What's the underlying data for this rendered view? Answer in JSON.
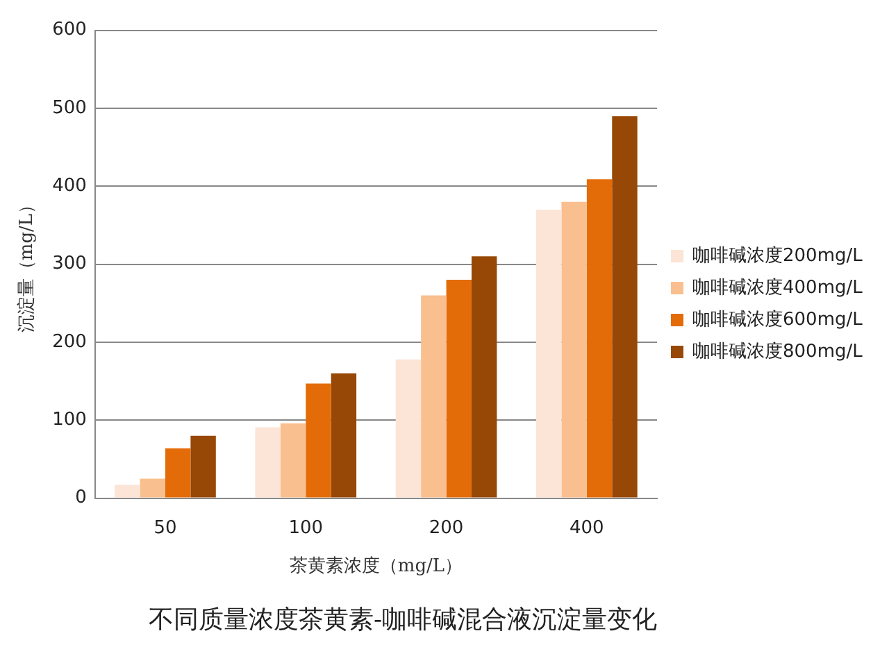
{
  "chart_data": {
    "type": "bar",
    "title": "不同质量浓度茶黄素-咖啡碱混合液沉淀量变化",
    "xlabel": "茶黄素浓度（mg/L）",
    "ylabel": "沉淀量（mg/L）",
    "categories": [
      "50",
      "100",
      "200",
      "400"
    ],
    "series": [
      {
        "name": "咖啡碱浓度200mg/L",
        "color": "#fce4d6",
        "values": [
          17,
          91,
          178,
          370
        ]
      },
      {
        "name": "咖啡碱浓度400mg/L",
        "color": "#f9bf8f",
        "values": [
          25,
          96,
          260,
          380
        ]
      },
      {
        "name": "咖啡碱浓度600mg/L",
        "color": "#e36c09",
        "values": [
          64,
          147,
          280,
          409
        ]
      },
      {
        "name": "咖啡碱浓度800mg/L",
        "color": "#974806",
        "values": [
          80,
          160,
          310,
          490
        ]
      }
    ],
    "ylim": [
      0,
      600
    ],
    "yticks": [
      0,
      100,
      200,
      300,
      400,
      500,
      600
    ],
    "grid": "y",
    "legend": "right"
  }
}
